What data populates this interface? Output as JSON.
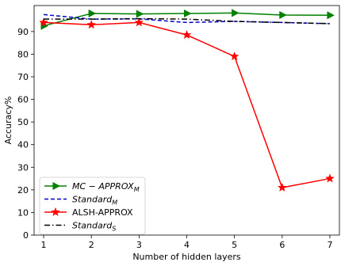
{
  "chart_data": {
    "type": "line",
    "title": "",
    "xlabel": "Number of hidden layers",
    "ylabel": "Accuracy%",
    "x": [
      1,
      2,
      3,
      4,
      5,
      6,
      7
    ],
    "xticks": [
      "1",
      "2",
      "3",
      "4",
      "5",
      "6",
      "7"
    ],
    "yticks": [
      "0",
      "10",
      "20",
      "30",
      "40",
      "50",
      "60",
      "70",
      "80",
      "90"
    ],
    "xlim": [
      0.8,
      7.2
    ],
    "ylim": [
      0,
      101.5
    ],
    "grid": false,
    "legend_position": "bottom-left",
    "series": [
      {
        "name": "MC − APPROX",
        "name_sub": "M",
        "legend_italic": true,
        "values": [
          92.5,
          98.0,
          97.8,
          98.0,
          98.2,
          97.3,
          97.2
        ],
        "color": "#008000",
        "dash": "",
        "marker": "triangle-right"
      },
      {
        "name": "Standard",
        "name_sub": "M",
        "legend_italic": true,
        "values": [
          97.5,
          95.5,
          95.6,
          94.0,
          94.5,
          94.0,
          93.5
        ],
        "color": "#0000cc",
        "dash": "5,3",
        "marker": "none"
      },
      {
        "name": "ALSH-APPROX",
        "name_sub": "",
        "legend_italic": false,
        "values": [
          94.0,
          93.0,
          94.0,
          88.5,
          79.0,
          21.0,
          25.0
        ],
        "color": "#ff0000",
        "dash": "",
        "marker": "star"
      },
      {
        "name": "Standard",
        "name_sub": "S",
        "legend_italic": true,
        "values": [
          95.5,
          95.5,
          95.7,
          95.5,
          94.5,
          94.0,
          93.5
        ],
        "color": "#000000",
        "dash": "7,3,1.5,3",
        "marker": "none"
      }
    ]
  }
}
